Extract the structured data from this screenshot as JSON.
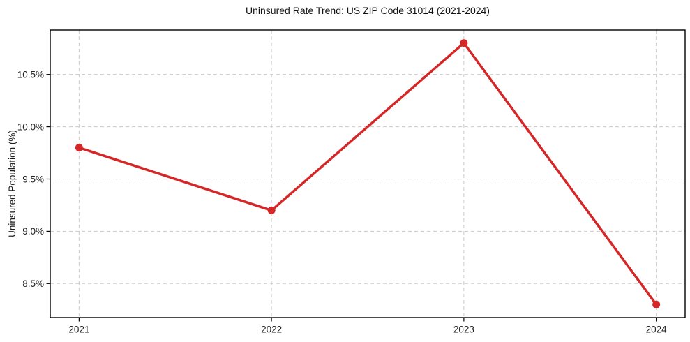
{
  "chart_data": {
    "type": "line",
    "title": "Uninsured Rate Trend: US ZIP Code 31014 (2021-2024)",
    "xlabel": "",
    "ylabel": "Uninsured Population (%)",
    "categories": [
      2021,
      2022,
      2023,
      2024
    ],
    "values": [
      9.8,
      9.2,
      10.8,
      8.3
    ],
    "x_tick_labels": [
      "2021",
      "2022",
      "2023",
      "2024"
    ],
    "y_ticks": [
      8.5,
      9.0,
      9.5,
      10.0,
      10.5
    ],
    "y_tick_labels": [
      "8.5%",
      "9.0%",
      "9.5%",
      "10.0%",
      "10.5%"
    ],
    "xlim": [
      2020.85,
      2024.15
    ],
    "ylim": [
      8.175,
      10.925
    ],
    "grid": true,
    "grid_linestyle": "dashed",
    "legend_position": "none",
    "colors": {
      "line": "#d62728",
      "marker": "#d62728",
      "grid": "#c9c9c9",
      "spine": "#000000",
      "text": "#1c1c1c"
    }
  }
}
